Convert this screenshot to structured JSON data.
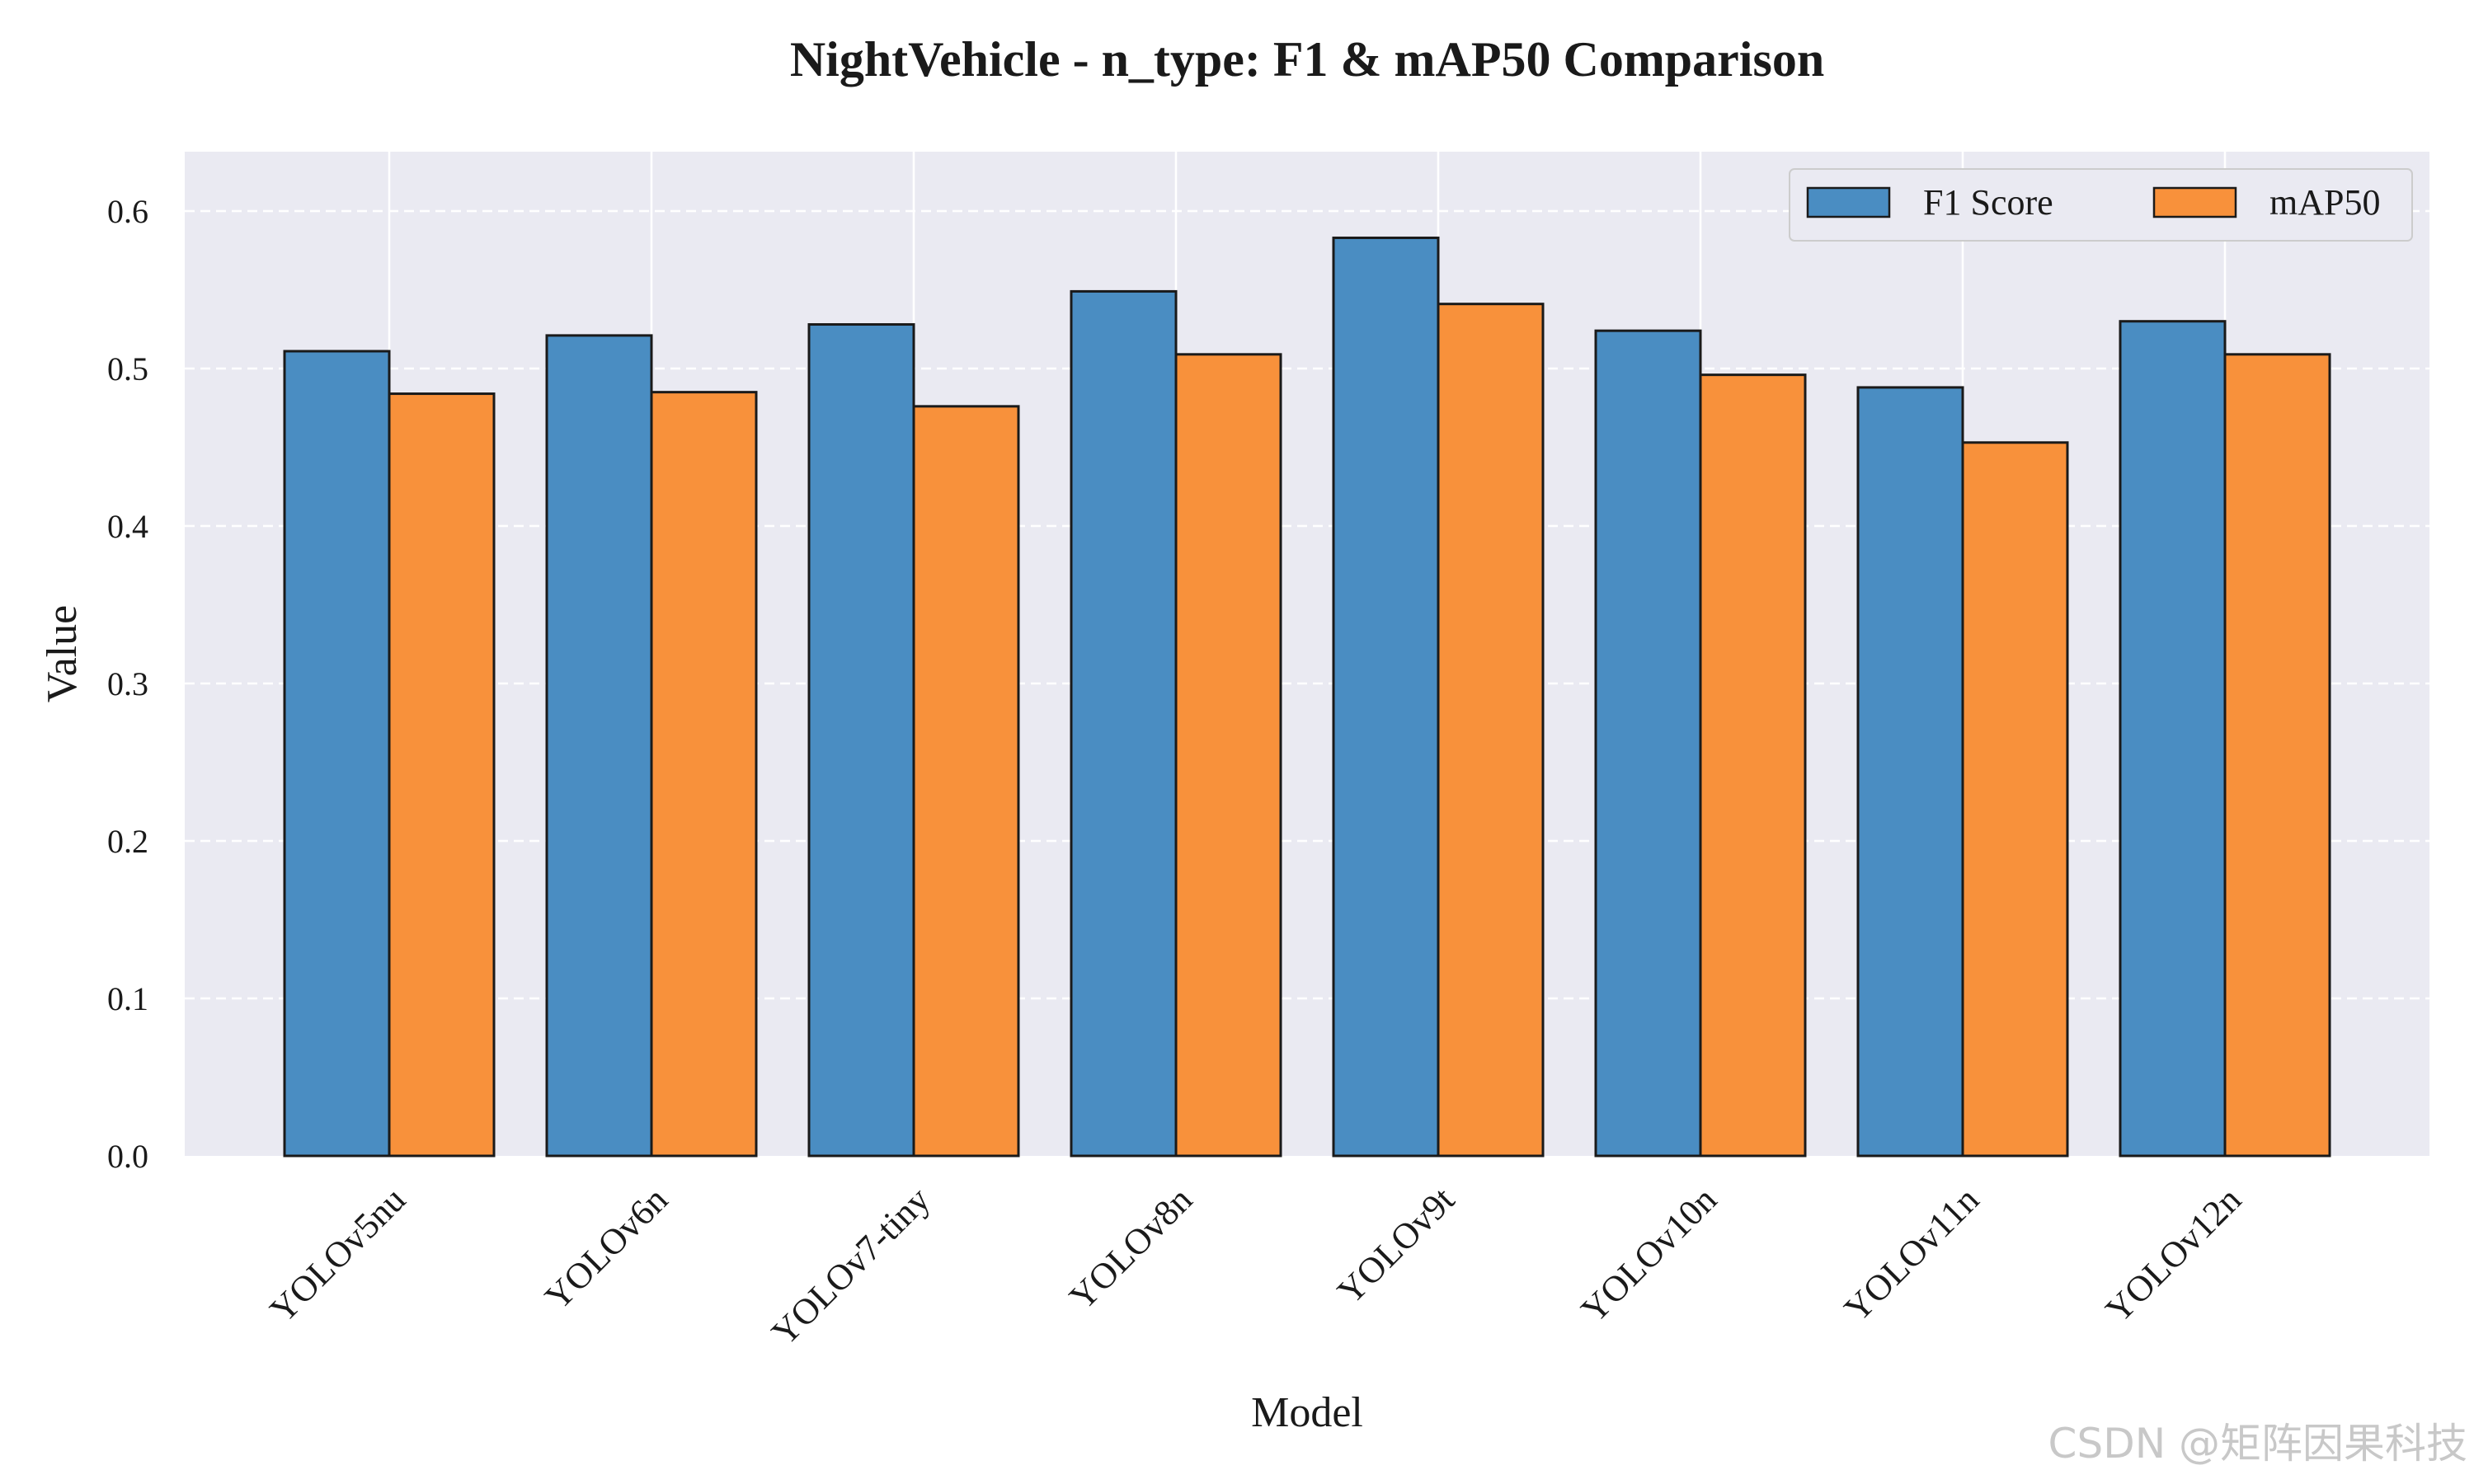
{
  "chart_data": {
    "type": "bar",
    "title": "NightVehicle - n_type: F1 & mAP50 Comparison",
    "xlabel": "Model",
    "ylabel": "Value",
    "ylim": [
      0,
      0.64
    ],
    "yticks": [
      "0.0",
      "0.1",
      "0.2",
      "0.3",
      "0.4",
      "0.5",
      "0.6"
    ],
    "categories": [
      "YOLOv5nu",
      "YOLOv6n",
      "YOLOv7-tiny",
      "YOLOv8n",
      "YOLOv9t",
      "YOLOv10n",
      "YOLOv11n",
      "YOLOv12n"
    ],
    "series": [
      {
        "name": "F1 Score",
        "color": "#4a8dc2",
        "values": [
          0.511,
          0.521,
          0.528,
          0.549,
          0.583,
          0.524,
          0.488,
          0.53
        ]
      },
      {
        "name": "mAP50",
        "color": "#f8913b",
        "values": [
          0.484,
          0.485,
          0.476,
          0.509,
          0.541,
          0.496,
          0.453,
          0.509
        ]
      }
    ],
    "grid": true,
    "legend_position": "top-right",
    "background": "#eaeaf2"
  },
  "watermark": "CSDN @矩阵因果科技"
}
